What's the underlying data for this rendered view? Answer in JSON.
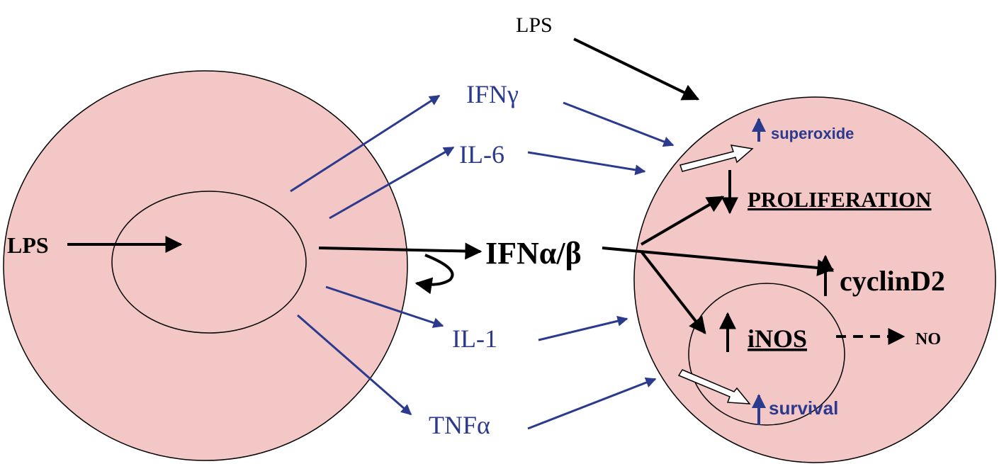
{
  "labels": {
    "lps_top": "LPS",
    "lps_left": "LPS",
    "ifn_gamma": "IFNγ",
    "il6": "IL-6",
    "ifn_alpha_beta": "IFNα/β",
    "il1": "IL-1",
    "tnf_alpha": "TNFα",
    "superoxide": "superoxide",
    "proliferation": "PROLIFERATION",
    "cyclind2": "cyclinD2",
    "inos": "iNOS",
    "no": "NO",
    "survival": "survival"
  }
}
